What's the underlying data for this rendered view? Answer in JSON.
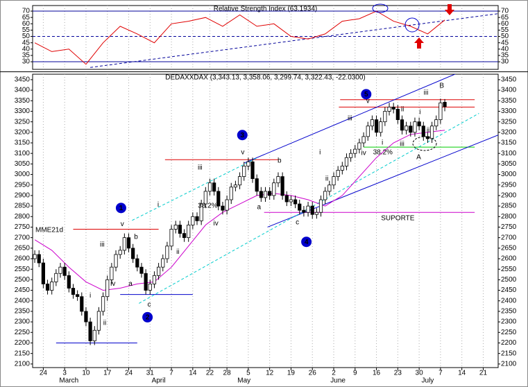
{
  "chart_data": [
    {
      "type": "line",
      "title": "Relative Strength Index (63.1934)",
      "x": [
        0,
        4,
        8,
        12,
        16,
        20,
        24,
        28,
        32,
        36,
        40,
        44,
        48,
        52,
        56,
        60,
        64,
        68,
        72,
        76,
        80,
        84,
        88,
        92,
        96
      ],
      "series": [
        {
          "color": "#e00000",
          "values": [
            45,
            38,
            40,
            28,
            45,
            58,
            52,
            45,
            60,
            62,
            65,
            58,
            67,
            58,
            60,
            50,
            48,
            52,
            62,
            64,
            70,
            62,
            58,
            52,
            63
          ]
        }
      ],
      "xlim": [
        -0.5,
        108.5
      ],
      "ylim": [
        24,
        74.4
      ],
      "yticks": [
        30,
        35,
        40,
        45,
        50,
        55,
        60,
        65,
        70
      ],
      "lines": [
        {
          "x": [
            -0.5,
            108.5
          ],
          "y": [
            70,
            70
          ],
          "color": "#000099",
          "dash": false
        },
        {
          "x": [
            -0.5,
            108.5
          ],
          "y": [
            50,
            50
          ],
          "color": "#000099",
          "dash": true
        },
        {
          "x": [
            -0.5,
            108.5
          ],
          "y": [
            30,
            30
          ],
          "color": "#000099",
          "dash": false
        },
        {
          "x": [
            13,
            108.5
          ],
          "y": [
            25.5,
            68
          ],
          "color": "#000099",
          "dash": true
        }
      ]
    },
    {
      "type": "candlestick",
      "title": "DEDAXXDAX (3,343.13, 3,358.06, 3,299.74, 3,322.43, -22.0300)",
      "x": [
        0,
        1,
        2,
        3,
        4,
        5,
        6,
        7,
        8,
        9,
        10,
        11,
        12,
        13,
        14,
        15,
        16,
        17,
        18,
        19,
        20,
        21,
        22,
        23,
        24,
        25,
        26,
        27,
        28,
        29,
        30,
        31,
        32,
        33,
        34,
        35,
        36,
        37,
        38,
        39,
        40,
        41,
        42,
        43,
        44,
        45,
        46,
        47,
        48,
        49,
        50,
        51,
        52,
        53,
        54,
        55,
        56,
        57,
        58,
        59,
        60,
        61,
        62,
        63,
        64,
        65,
        66,
        67,
        68,
        69,
        70,
        71,
        72,
        73,
        74,
        75,
        76,
        77,
        78,
        79,
        80,
        81,
        82,
        83,
        84,
        85,
        86,
        87,
        88,
        89,
        90,
        91,
        92,
        93,
        94,
        95,
        96
      ],
      "open": [
        2600,
        2620,
        2580,
        2480,
        2450,
        2490,
        2530,
        2560,
        2520,
        2460,
        2430,
        2420,
        2350,
        2300,
        2210,
        2260,
        2350,
        2420,
        2500,
        2560,
        2620,
        2640,
        2700,
        2650,
        2600,
        2560,
        2530,
        2450,
        2480,
        2520,
        2560,
        2600,
        2660,
        2740,
        2760,
        2720,
        2700,
        2760,
        2800,
        2780,
        2860,
        2920,
        2960,
        2920,
        2850,
        2830,
        2880,
        2940,
        2950,
        2990,
        3040,
        3060,
        2980,
        2920,
        2890,
        2920,
        2900,
        2960,
        2990,
        2900,
        2870,
        2880,
        2860,
        2830,
        2820,
        2850,
        2810,
        2820,
        2880,
        2920,
        2950,
        2990,
        3020,
        3040,
        3080,
        3100,
        3120,
        3150,
        3180,
        3230,
        3260,
        3200,
        3250,
        3300,
        3320,
        3310,
        3260,
        3210,
        3230,
        3200,
        3250,
        3230,
        3180,
        3170,
        3230,
        3260,
        3343
      ],
      "high": [
        2640,
        2640,
        2600,
        2500,
        2510,
        2550,
        2580,
        2580,
        2540,
        2480,
        2450,
        2440,
        2370,
        2320,
        2280,
        2370,
        2440,
        2520,
        2580,
        2640,
        2660,
        2720,
        2720,
        2670,
        2620,
        2580,
        2550,
        2500,
        2540,
        2580,
        2620,
        2680,
        2760,
        2780,
        2780,
        2740,
        2780,
        2820,
        2820,
        2880,
        2940,
        2980,
        2980,
        2940,
        2870,
        2900,
        2960,
        2970,
        3010,
        3060,
        3080,
        3080,
        3000,
        2940,
        2940,
        2940,
        2980,
        3010,
        3010,
        2920,
        2900,
        2900,
        2880,
        2850,
        2870,
        2870,
        2840,
        2900,
        2940,
        2970,
        3010,
        3040,
        3060,
        3100,
        3120,
        3140,
        3170,
        3200,
        3250,
        3280,
        3280,
        3270,
        3320,
        3340,
        3340,
        3330,
        3280,
        3250,
        3250,
        3270,
        3270,
        3250,
        3200,
        3250,
        3280,
        3360,
        3358
      ],
      "low": [
        2580,
        2560,
        2460,
        2430,
        2430,
        2470,
        2510,
        2500,
        2440,
        2410,
        2400,
        2330,
        2280,
        2190,
        2190,
        2240,
        2330,
        2400,
        2480,
        2540,
        2600,
        2620,
        2630,
        2580,
        2540,
        2510,
        2430,
        2430,
        2460,
        2500,
        2540,
        2580,
        2640,
        2720,
        2700,
        2680,
        2680,
        2740,
        2760,
        2760,
        2840,
        2900,
        2900,
        2830,
        2810,
        2810,
        2860,
        2920,
        2930,
        2970,
        3020,
        2960,
        2900,
        2870,
        2870,
        2880,
        2880,
        2940,
        2880,
        2850,
        2850,
        2840,
        2810,
        2800,
        2800,
        2790,
        2790,
        2800,
        2860,
        2900,
        2930,
        2970,
        3000,
        3020,
        3060,
        3080,
        3100,
        3130,
        3160,
        3210,
        3180,
        3180,
        3230,
        3280,
        3290,
        3240,
        3190,
        3190,
        3180,
        3180,
        3210,
        3160,
        3150,
        3150,
        3210,
        3240,
        3300
      ],
      "close": [
        2620,
        2580,
        2480,
        2450,
        2490,
        2530,
        2560,
        2520,
        2460,
        2430,
        2420,
        2350,
        2300,
        2210,
        2260,
        2350,
        2420,
        2500,
        2560,
        2620,
        2640,
        2700,
        2650,
        2600,
        2560,
        2530,
        2450,
        2480,
        2520,
        2560,
        2600,
        2660,
        2740,
        2760,
        2720,
        2700,
        2760,
        2800,
        2780,
        2860,
        2920,
        2960,
        2920,
        2850,
        2830,
        2880,
        2940,
        2950,
        2990,
        3040,
        3060,
        2980,
        2920,
        2890,
        2920,
        2900,
        2960,
        2990,
        2900,
        2870,
        2880,
        2860,
        2830,
        2820,
        2850,
        2810,
        2820,
        2880,
        2920,
        2950,
        2990,
        3020,
        3040,
        3080,
        3100,
        3120,
        3150,
        3180,
        3230,
        3260,
        3200,
        3250,
        3300,
        3320,
        3310,
        3260,
        3210,
        3230,
        3200,
        3250,
        3230,
        3180,
        3170,
        3230,
        3260,
        3340,
        3322
      ],
      "series": [
        {
          "name": "MME21d",
          "color": "#cc00cc",
          "x": [
            0,
            4,
            8,
            12,
            16,
            20,
            24,
            28,
            32,
            36,
            40,
            44,
            48,
            52,
            56,
            60,
            64,
            68,
            72,
            76,
            80,
            84,
            88,
            92,
            96
          ],
          "values": [
            2690,
            2640,
            2560,
            2490,
            2450,
            2460,
            2480,
            2490,
            2560,
            2660,
            2760,
            2820,
            2860,
            2900,
            2910,
            2900,
            2880,
            2850,
            2900,
            2990,
            3080,
            3150,
            3190,
            3200,
            3210
          ]
        }
      ],
      "xlim": [
        -0.5,
        108.5
      ],
      "ylim": [
        2083,
        3476
      ],
      "yticks": [
        2100,
        2150,
        2200,
        2250,
        2300,
        2350,
        2400,
        2450,
        2500,
        2550,
        2600,
        2650,
        2700,
        2750,
        2800,
        2850,
        2900,
        2950,
        3000,
        3050,
        3100,
        3150,
        3200,
        3250,
        3300,
        3350,
        3400,
        3450
      ],
      "xticks": [
        {
          "value": 2,
          "label": "24"
        },
        {
          "value": 7,
          "label": "3"
        },
        {
          "value": 12,
          "label": "10"
        },
        {
          "value": 17,
          "label": "17"
        },
        {
          "value": 22,
          "label": "24"
        },
        {
          "value": 27,
          "label": "31"
        },
        {
          "value": 32,
          "label": "7"
        },
        {
          "value": 37,
          "label": "14"
        },
        {
          "value": 41,
          "label": "22"
        },
        {
          "value": 45,
          "label": "28"
        },
        {
          "value": 50,
          "label": "5"
        },
        {
          "value": 55,
          "label": "12"
        },
        {
          "value": 60,
          "label": "19"
        },
        {
          "value": 65,
          "label": "26"
        },
        {
          "value": 70,
          "label": "2"
        },
        {
          "value": 75,
          "label": "9"
        },
        {
          "value": 80,
          "label": "16"
        },
        {
          "value": 85,
          "label": "23"
        },
        {
          "value": 90,
          "label": "30"
        },
        {
          "value": 95,
          "label": "7"
        },
        {
          "value": 100,
          "label": "14"
        },
        {
          "value": 105,
          "label": "21"
        }
      ],
      "month_labels": [
        {
          "value": 8,
          "label": "March"
        },
        {
          "value": 29,
          "label": "April"
        },
        {
          "value": 49,
          "label": "May"
        },
        {
          "value": 71,
          "label": "June"
        },
        {
          "value": 92,
          "label": "July"
        }
      ],
      "grid": true,
      "lines": [
        {
          "x": [
            5,
            24
          ],
          "y": [
            2200,
            2200
          ],
          "color": "#0000cc",
          "dash": false
        },
        {
          "x": [
            9,
            29
          ],
          "y": [
            2740,
            2740
          ],
          "color": "#dd0000",
          "dash": false
        },
        {
          "x": [
            20,
            37
          ],
          "y": [
            2430,
            2430
          ],
          "color": "#0000cc",
          "dash": false
        },
        {
          "x": [
            30.5,
            57
          ],
          "y": [
            3070,
            3070
          ],
          "color": "#dd0000",
          "dash": false
        },
        {
          "x": [
            53.7,
            103
          ],
          "y": [
            2820,
            2820
          ],
          "color": "#cc00cc",
          "dash": false
        },
        {
          "x": [
            71.5,
            103
          ],
          "y": [
            3355,
            3355
          ],
          "color": "#dd0000",
          "dash": false
        },
        {
          "x": [
            71.2,
            103
          ],
          "y": [
            3320,
            3320
          ],
          "color": "#dd0000",
          "dash": false
        },
        {
          "x": [
            77,
            103
          ],
          "y": [
            3130,
            3130
          ],
          "color": "#00cc00",
          "dash": false
        },
        {
          "x": [
            49.1,
            99.2
          ],
          "y": [
            3055,
            3483
          ],
          "color": "#0000cc",
          "dash": false
        },
        {
          "x": [
            54.5,
            108.5
          ],
          "y": [
            2750,
            3187
          ],
          "color": "#0000cc",
          "dash": false
        },
        {
          "x": [
            22.8,
            52
          ],
          "y": [
            2782,
            3078
          ],
          "color": "#00cccc",
          "dash": true
        },
        {
          "x": [
            24.4,
            104
          ],
          "y": [
            2388,
            3290
          ],
          "color": "#00cccc",
          "dash": true
        }
      ],
      "annotations": [
        {
          "text": "1",
          "x": 20.2,
          "y": 2841,
          "circle": true
        },
        {
          "text": "2",
          "x": 26.4,
          "y": 2322,
          "circle": true
        },
        {
          "text": "3",
          "x": 48.6,
          "y": 3187,
          "circle": true
        },
        {
          "text": "4",
          "x": 63.6,
          "y": 2680,
          "circle": true
        },
        {
          "text": "5",
          "x": 77.6,
          "y": 3381,
          "circle": true
        },
        {
          "text": "A",
          "x": 89.9,
          "y": 3082
        },
        {
          "text": "B",
          "x": 95.3,
          "y": 3420
        },
        {
          "text": "v",
          "x": 20.5,
          "y": 2763
        },
        {
          "text": "iii",
          "x": 15.8,
          "y": 2667
        },
        {
          "text": "iv",
          "x": 18.3,
          "y": 2480
        },
        {
          "text": "i",
          "x": 13,
          "y": 2424
        },
        {
          "text": "ii",
          "x": 16.4,
          "y": 2295
        },
        {
          "text": "b",
          "x": 23.7,
          "y": 2703
        },
        {
          "text": "a",
          "x": 22.4,
          "y": 2480
        },
        {
          "text": "c",
          "x": 26.8,
          "y": 2381
        },
        {
          "text": "i",
          "x": 28.9,
          "y": 2855
        },
        {
          "text": "ii",
          "x": 33.5,
          "y": 2631
        },
        {
          "text": "iii",
          "x": 38.7,
          "y": 3032
        },
        {
          "text": "iv",
          "x": 42.4,
          "y": 2766
        },
        {
          "text": "v",
          "x": 48.7,
          "y": 3105
        },
        {
          "text": "a",
          "x": 52.5,
          "y": 2845
        },
        {
          "text": "b",
          "x": 57.3,
          "y": 3065
        },
        {
          "text": "c",
          "x": 61.5,
          "y": 2772
        },
        {
          "text": "i",
          "x": 66.8,
          "y": 3105
        },
        {
          "text": "ii",
          "x": 68.4,
          "y": 2980
        },
        {
          "text": "iii",
          "x": 73.8,
          "y": 3266
        },
        {
          "text": "iv",
          "x": 77,
          "y": 3101
        },
        {
          "text": "v",
          "x": 78,
          "y": 3348
        },
        {
          "text": "i",
          "x": 81.4,
          "y": 3151
        },
        {
          "text": "ii",
          "x": 86.1,
          "y": 3309
        },
        {
          "text": "iii",
          "x": 86,
          "y": 3144
        },
        {
          "text": "i",
          "x": 90.2,
          "y": 3295
        },
        {
          "text": "ii",
          "x": 92.1,
          "y": 3210
        },
        {
          "text": "iii",
          "x": 91.6,
          "y": 3388
        },
        {
          "text": "38.2%",
          "x": 40.5,
          "y": 2851,
          "color": "#00aa00"
        },
        {
          "text": "38.2%",
          "x": 81.5,
          "y": 3105,
          "color": "#00aa00"
        },
        {
          "text": "SUPORTE",
          "x": 85,
          "y": 2792,
          "color": "#cc00cc"
        }
      ]
    }
  ]
}
